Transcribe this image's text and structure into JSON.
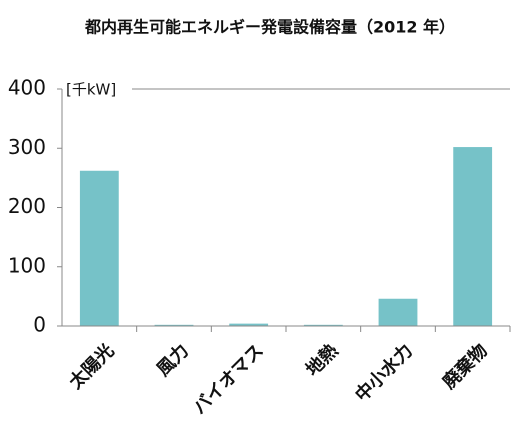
{
  "chart_data": {
    "type": "bar",
    "title": "都内再生可能エネルギー発電設備容量（2012 年）",
    "unit_label": "[千kW]",
    "categories": [
      "太陽光",
      "風力",
      "バイオマス",
      "地熱",
      "中小水力",
      "廃棄物"
    ],
    "values": [
      262,
      2,
      4,
      2,
      46,
      302
    ],
    "color": "#76c2c8",
    "ylim": [
      0,
      400
    ],
    "yticks": [
      0,
      100,
      200,
      300,
      400
    ],
    "grid": false
  }
}
